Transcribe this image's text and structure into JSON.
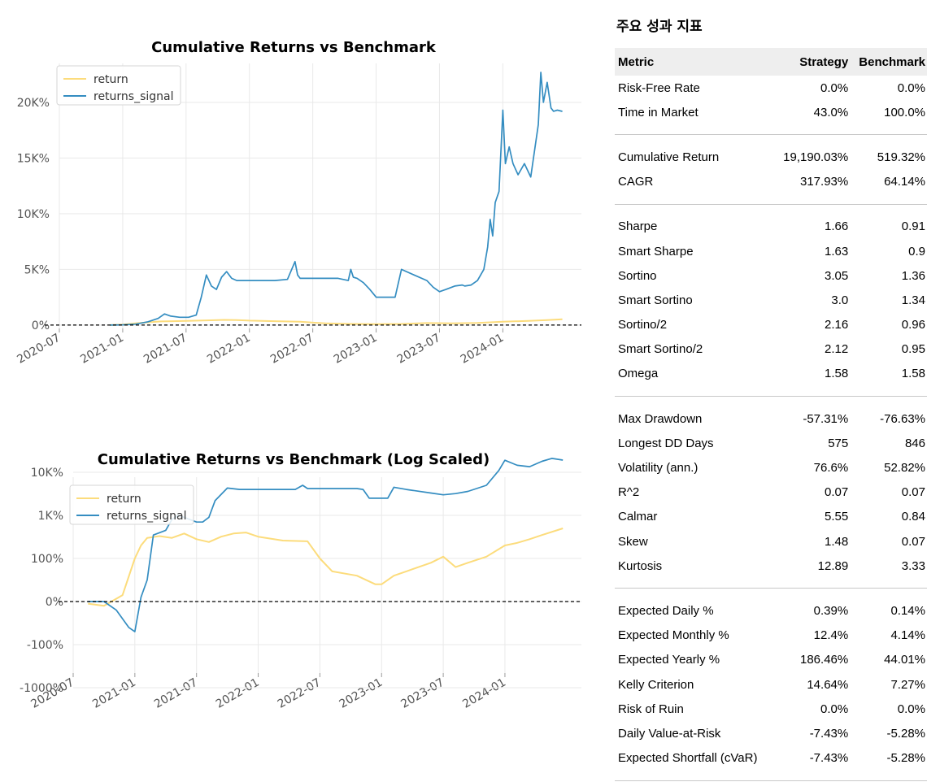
{
  "charts": {
    "top_title": "Cumulative Returns vs Benchmark",
    "bottom_title": "Cumulative Returns vs Benchmark (Log Scaled)",
    "legend": [
      "return",
      "returns_signal"
    ],
    "colors": {
      "return": "#fcdc7c",
      "returns_signal": "#348dc1",
      "baseline": "#000000",
      "grid": "#e9e9e9"
    }
  },
  "chart_data": [
    {
      "type": "line",
      "title": "Cumulative Returns vs Benchmark",
      "xlabel": "",
      "ylabel": "",
      "x_ticks": [
        "2020-07",
        "2021-01",
        "2021-07",
        "2022-01",
        "2022-07",
        "2023-01",
        "2023-07",
        "2024-01"
      ],
      "x_range": [
        2020.5,
        2024.62
      ],
      "y_ticks": [
        {
          "v": 0,
          "label": "0%"
        },
        {
          "v": 5000,
          "label": "5K%"
        },
        {
          "v": 10000,
          "label": "10K%"
        },
        {
          "v": 15000,
          "label": "15K%"
        },
        {
          "v": 20000,
          "label": "20K%"
        }
      ],
      "ylim": [
        -300,
        23500
      ],
      "baseline": 0,
      "series": [
        {
          "name": "returns_signal",
          "x": [
            2020.9,
            2021.0,
            2021.1,
            2021.2,
            2021.28,
            2021.33,
            2021.38,
            2021.45,
            2021.52,
            2021.58,
            2021.62,
            2021.66,
            2021.7,
            2021.74,
            2021.78,
            2021.82,
            2021.86,
            2021.9,
            2021.95,
            2022.0,
            2022.05,
            2022.1,
            2022.2,
            2022.3,
            2022.36,
            2022.38,
            2022.4,
            2022.42,
            2022.5,
            2022.6,
            2022.7,
            2022.78,
            2022.8,
            2022.82,
            2022.85,
            2022.9,
            2022.95,
            2023.0,
            2023.05,
            2023.1,
            2023.15,
            2023.2,
            2023.3,
            2023.4,
            2023.45,
            2023.5,
            2023.55,
            2023.62,
            2023.68,
            2023.7,
            2023.75,
            2023.8,
            2023.85,
            2023.88,
            2023.9,
            2023.92,
            2023.94,
            2023.97,
            2024.0,
            2024.02,
            2024.05,
            2024.08,
            2024.12,
            2024.17,
            2024.22,
            2024.28,
            2024.3,
            2024.32,
            2024.35,
            2024.38,
            2024.4,
            2024.43,
            2024.47
          ],
          "y": [
            0,
            20,
            80,
            300,
            600,
            1000,
            800,
            700,
            700,
            900,
            2500,
            4500,
            3500,
            3200,
            4300,
            4800,
            4200,
            4000,
            4000,
            4000,
            4000,
            4000,
            4000,
            4100,
            5700,
            4500,
            4200,
            4200,
            4200,
            4200,
            4200,
            4000,
            5000,
            4300,
            4200,
            3800,
            3200,
            2500,
            2500,
            2500,
            2500,
            5000,
            4500,
            4000,
            3400,
            3000,
            3200,
            3500,
            3600,
            3500,
            3600,
            4000,
            5000,
            7000,
            9500,
            8000,
            11000,
            12000,
            19300,
            14500,
            16000,
            14500,
            13500,
            14500,
            13300,
            18000,
            22700,
            20000,
            21800,
            19500,
            19200,
            19300,
            19190
          ]
        },
        {
          "name": "return",
          "x": [
            2020.9,
            2021.0,
            2021.1,
            2021.2,
            2021.3,
            2021.4,
            2021.5,
            2021.6,
            2021.7,
            2021.8,
            2021.9,
            2022.0,
            2022.2,
            2022.4,
            2022.6,
            2022.8,
            2023.0,
            2023.2,
            2023.4,
            2023.6,
            2023.8,
            2024.0,
            2024.2,
            2024.35,
            2024.47
          ],
          "y": [
            0,
            50,
            150,
            250,
            330,
            350,
            380,
            400,
            430,
            470,
            450,
            400,
            350,
            300,
            150,
            100,
            80,
            100,
            180,
            150,
            200,
            300,
            380,
            450,
            519
          ]
        }
      ]
    },
    {
      "type": "line",
      "title": "Cumulative Returns vs Benchmark (Log Scaled)",
      "xlabel": "",
      "ylabel": "",
      "x_ticks": [
        "2020-07",
        "2021-01",
        "2021-07",
        "2022-01",
        "2022-07",
        "2023-01",
        "2023-07",
        "2024-01"
      ],
      "x_range": [
        2020.5,
        2024.62
      ],
      "yscale": "symlog",
      "y_ticks": [
        {
          "v": -1000,
          "label": "-1000%"
        },
        {
          "v": -100,
          "label": "-100%"
        },
        {
          "v": 0,
          "label": "0%"
        },
        {
          "v": 100,
          "label": "100%"
        },
        {
          "v": 1000,
          "label": "1K%"
        },
        {
          "v": 10000,
          "label": "10K%"
        }
      ],
      "baseline": 0,
      "series": [
        {
          "name": "returns_signal",
          "x": [
            2020.62,
            2020.75,
            2020.85,
            2020.95,
            2021.0,
            2021.05,
            2021.1,
            2021.15,
            2021.25,
            2021.3,
            2021.35,
            2021.4,
            2021.5,
            2021.55,
            2021.6,
            2021.65,
            2021.75,
            2021.85,
            2022.0,
            2022.2,
            2022.3,
            2022.36,
            2022.4,
            2022.6,
            2022.8,
            2022.85,
            2022.9,
            2023.0,
            2023.05,
            2023.1,
            2023.2,
            2023.4,
            2023.5,
            2023.6,
            2023.7,
            2023.85,
            2023.95,
            2024.0,
            2024.1,
            2024.2,
            2024.3,
            2024.38,
            2024.47
          ],
          "y": [
            0,
            0,
            -20,
            -60,
            -70,
            10,
            50,
            350,
            450,
            800,
            1000,
            900,
            700,
            700,
            900,
            2200,
            4300,
            4000,
            4000,
            4000,
            4000,
            5000,
            4200,
            4200,
            4200,
            4000,
            2500,
            2500,
            2500,
            4500,
            4000,
            3300,
            3000,
            3200,
            3600,
            5000,
            11000,
            19000,
            14500,
            13500,
            18000,
            21000,
            19190
          ]
        },
        {
          "name": "return",
          "x": [
            2020.62,
            2020.75,
            2020.9,
            2021.0,
            2021.05,
            2021.1,
            2021.2,
            2021.3,
            2021.4,
            2021.5,
            2021.6,
            2021.7,
            2021.8,
            2021.9,
            2022.0,
            2022.2,
            2022.4,
            2022.5,
            2022.6,
            2022.8,
            2022.95,
            2023.0,
            2023.1,
            2023.2,
            2023.4,
            2023.5,
            2023.6,
            2023.7,
            2023.85,
            2024.0,
            2024.1,
            2024.2,
            2024.3,
            2024.47
          ],
          "y": [
            -5,
            -10,
            15,
            100,
            200,
            300,
            330,
            300,
            380,
            280,
            240,
            320,
            380,
            400,
            320,
            260,
            250,
            100,
            70,
            60,
            40,
            40,
            60,
            70,
            90,
            110,
            80,
            90,
            110,
            200,
            230,
            280,
            350,
            500
          ]
        }
      ]
    }
  ],
  "metrics": {
    "title": "주요 성과 지표",
    "headers": [
      "Metric",
      "Strategy",
      "Benchmark"
    ],
    "groups": [
      [
        {
          "label": "Risk-Free Rate",
          "strategy": "0.0%",
          "benchmark": "0.0%"
        },
        {
          "label": "Time in Market",
          "strategy": "43.0%",
          "benchmark": "100.0%"
        }
      ],
      [
        {
          "label": "Cumulative Return",
          "strategy": "19,190.03%",
          "benchmark": "519.32%"
        },
        {
          "label": "CAGR",
          "strategy": "317.93%",
          "benchmark": "64.14%"
        }
      ],
      [
        {
          "label": "Sharpe",
          "strategy": "1.66",
          "benchmark": "0.91"
        },
        {
          "label": "Smart Sharpe",
          "strategy": "1.63",
          "benchmark": "0.9"
        },
        {
          "label": "Sortino",
          "strategy": "3.05",
          "benchmark": "1.36"
        },
        {
          "label": "Smart Sortino",
          "strategy": "3.0",
          "benchmark": "1.34"
        },
        {
          "label": "Sortino/2",
          "strategy": "2.16",
          "benchmark": "0.96"
        },
        {
          "label": "Smart Sortino/2",
          "strategy": "2.12",
          "benchmark": "0.95"
        },
        {
          "label": "Omega",
          "strategy": "1.58",
          "benchmark": "1.58"
        }
      ],
      [
        {
          "label": "Max Drawdown",
          "strategy": "-57.31%",
          "benchmark": "-76.63%"
        },
        {
          "label": "Longest DD Days",
          "strategy": "575",
          "benchmark": "846"
        },
        {
          "label": "Volatility (ann.)",
          "strategy": "76.6%",
          "benchmark": "52.82%"
        },
        {
          "label": "R^2",
          "strategy": "0.07",
          "benchmark": "0.07"
        },
        {
          "label": "Calmar",
          "strategy": "5.55",
          "benchmark": "0.84"
        },
        {
          "label": "Skew",
          "strategy": "1.48",
          "benchmark": "0.07"
        },
        {
          "label": "Kurtosis",
          "strategy": "12.89",
          "benchmark": "3.33"
        }
      ],
      [
        {
          "label": "Expected Daily %",
          "strategy": "0.39%",
          "benchmark": "0.14%"
        },
        {
          "label": "Expected Monthly %",
          "strategy": "12.4%",
          "benchmark": "4.14%"
        },
        {
          "label": "Expected Yearly %",
          "strategy": "186.46%",
          "benchmark": "44.01%"
        },
        {
          "label": "Kelly Criterion",
          "strategy": "14.64%",
          "benchmark": "7.27%"
        },
        {
          "label": "Risk of Ruin",
          "strategy": "0.0%",
          "benchmark": "0.0%"
        },
        {
          "label": "Daily Value-at-Risk",
          "strategy": "-7.43%",
          "benchmark": "-5.28%"
        },
        {
          "label": "Expected Shortfall (cVaR)",
          "strategy": "-7.43%",
          "benchmark": "-5.28%"
        }
      ]
    ]
  }
}
